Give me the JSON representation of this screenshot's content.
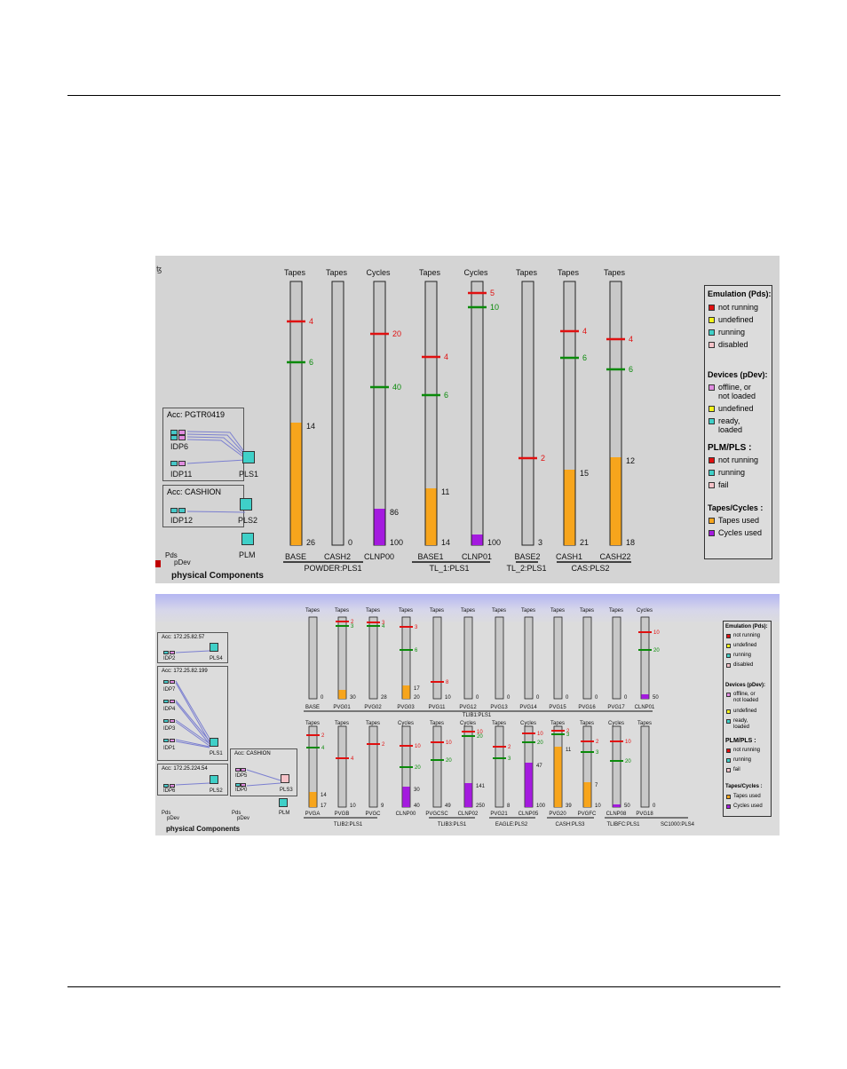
{
  "panel1": {
    "corner_glyph": "ꜩ",
    "physical_components_label": "physical Components",
    "pds_label": "Pds",
    "pdev_label": "pDev",
    "plm_label": "PLM",
    "acc_groups": [
      {
        "title": "Acc: PGTR0419",
        "devices": [
          "IDP6",
          "IDP11"
        ],
        "pls": "PLS1"
      },
      {
        "title": "Acc: CASHION",
        "devices": [
          "IDP12"
        ],
        "pls": "PLS2"
      }
    ],
    "columns": [
      {
        "header": "Tapes",
        "max": 26,
        "name": "BASE",
        "value": 14,
        "kind": "tapes",
        "markers": [
          {
            "v": 4,
            "c": "red"
          },
          {
            "v": 6,
            "c": "green"
          }
        ]
      },
      {
        "header": "Tapes",
        "max": 0,
        "name": "CASH2",
        "value": 0,
        "kind": "tapes",
        "markers": []
      },
      {
        "header": "Cycles",
        "max": 100,
        "name": "CLNP00",
        "value": 86,
        "kind": "cycles",
        "markers": [
          {
            "v": 20,
            "c": "red"
          },
          {
            "v": 40,
            "c": "green"
          }
        ]
      },
      {
        "header": "Tapes",
        "max": 14,
        "name": "BASE1",
        "value": 11,
        "kind": "tapes",
        "markers": [
          {
            "v": 4,
            "c": "red"
          },
          {
            "v": 6,
            "c": "green"
          }
        ]
      },
      {
        "header": "Cycles",
        "max": 100,
        "name": "CLNP01",
        "value": "",
        "kind": "cycles",
        "markers": [
          {
            "v": 5,
            "c": "red"
          },
          {
            "v": 10,
            "c": "green"
          }
        ]
      },
      {
        "header": "Tapes",
        "max": 3,
        "name": "BASE2",
        "value": "",
        "kind": "tapes",
        "markers": [
          {
            "v": 2,
            "c": "red"
          }
        ]
      },
      {
        "header": "Tapes",
        "max": 21,
        "name": "CASH1",
        "value": 15,
        "kind": "tapes",
        "markers": [
          {
            "v": 4,
            "c": "red"
          },
          {
            "v": 6,
            "c": "green"
          }
        ]
      },
      {
        "header": "Tapes",
        "max": 18,
        "name": "CASH22",
        "value": 12,
        "kind": "tapes",
        "markers": [
          {
            "v": 4,
            "c": "red"
          },
          {
            "v": 6,
            "c": "green"
          }
        ]
      }
    ],
    "pls_groups": [
      "POWDER:PLS1",
      "TL_1:PLS1",
      "TL_2:PLS1",
      "CAS:PLS2"
    ]
  },
  "panel2": {
    "physical_components_label": "physical Components",
    "pds_label": "Pds",
    "pdev_label": "pDev",
    "plm_label": "PLM",
    "acc_groups": [
      {
        "title": "Acc: 172.25.82.57",
        "devices": [
          "IDP2"
        ],
        "pls": "PLS4"
      },
      {
        "title": "Acc: 172.25.82.199",
        "devices": [
          "IDP7",
          "IDP4",
          "IDP3",
          "IDP1"
        ],
        "pls": "PLS1"
      },
      {
        "title": "Acc: 172.25.224.54",
        "devices": [
          "IDP6"
        ],
        "pls": "PLS2"
      },
      {
        "title": "Acc: CASHION",
        "devices": [
          "IDP5",
          "IDP0"
        ],
        "pls": "PLS3"
      }
    ],
    "row1": [
      {
        "header": "Tapes",
        "name": "BASE",
        "bottom": "0",
        "fill": "",
        "kind": "tapes",
        "markers": []
      },
      {
        "header": "Tapes",
        "name": "PVG01",
        "bottom": "30",
        "fill": "",
        "kind": "tapes",
        "markers": [
          {
            "t": "2",
            "c": "red"
          },
          {
            "t": "3",
            "c": "green"
          }
        ]
      },
      {
        "header": "Tapes",
        "name": "PVG02",
        "bottom": "28",
        "fill": "",
        "kind": "tapes",
        "markers": [
          {
            "t": "3",
            "c": "red"
          },
          {
            "t": "4",
            "c": "green"
          }
        ]
      },
      {
        "header": "Tapes",
        "name": "PVG03",
        "bottom": "20",
        "fill": "17",
        "kind": "tapes",
        "markers": [
          {
            "t": "3",
            "c": "red"
          },
          {
            "t": "6",
            "c": "green"
          }
        ]
      },
      {
        "header": "Tapes",
        "name": "PVG11",
        "bottom": "10",
        "fill": "",
        "kind": "tapes",
        "markers": [
          {
            "t": "8",
            "c": "red"
          }
        ]
      },
      {
        "header": "Tapes",
        "name": "PVG12",
        "bottom": "0",
        "fill": "",
        "kind": "tapes",
        "markers": []
      },
      {
        "header": "Tapes",
        "name": "PVG13",
        "bottom": "0",
        "fill": "",
        "kind": "tapes",
        "markers": []
      },
      {
        "header": "Tapes",
        "name": "PVG14",
        "bottom": "0",
        "fill": "",
        "kind": "tapes",
        "markers": []
      },
      {
        "header": "Tapes",
        "name": "PVG15",
        "bottom": "0",
        "fill": "",
        "kind": "tapes",
        "markers": []
      },
      {
        "header": "Tapes",
        "name": "PVG16",
        "bottom": "0",
        "fill": "",
        "kind": "tapes",
        "markers": []
      },
      {
        "header": "Tapes",
        "name": "PVG17",
        "bottom": "0",
        "fill": "",
        "kind": "tapes",
        "markers": []
      },
      {
        "header": "Cycles",
        "name": "CLNP01",
        "bottom": "50",
        "fill": "",
        "kind": "cycles",
        "markers": [
          {
            "t": "10",
            "c": "red"
          },
          {
            "t": "20",
            "c": "green"
          }
        ]
      }
    ],
    "row1_group": "TLIB1:PLS1",
    "row2": [
      {
        "header": "Tapes",
        "name": "PVGA",
        "bottom": "17",
        "fill": "14",
        "kind": "tapes",
        "markers": [
          {
            "t": "2",
            "c": "red"
          },
          {
            "t": "4",
            "c": "green"
          }
        ]
      },
      {
        "header": "Tapes",
        "name": "PVGB",
        "bottom": "10",
        "fill": "",
        "kind": "tapes",
        "markers": [
          {
            "t": "4",
            "c": "red"
          }
        ]
      },
      {
        "header": "Tapes",
        "name": "PVGC",
        "bottom": "9",
        "fill": "",
        "kind": "tapes",
        "markers": [
          {
            "t": "2",
            "c": "red"
          }
        ]
      },
      {
        "header": "Cycles",
        "name": "CLNP00",
        "bottom": "40",
        "fill": "30",
        "kind": "cycles",
        "markers": [
          {
            "t": "10",
            "c": "red"
          },
          {
            "t": "20",
            "c": "green"
          }
        ]
      },
      {
        "header": "Tapes",
        "name": "PVGCSC",
        "bottom": "49",
        "fill": "",
        "kind": "tapes",
        "markers": [
          {
            "t": "10",
            "c": "red"
          },
          {
            "t": "20",
            "c": "green"
          }
        ]
      },
      {
        "header": "Cycles",
        "name": "CLNP02",
        "bottom": "250",
        "fill": "141",
        "kind": "cycles",
        "markers": [
          {
            "t": "10",
            "c": "red"
          },
          {
            "t": "20",
            "c": "green"
          }
        ]
      },
      {
        "header": "Tapes",
        "name": "PVG21",
        "bottom": "8",
        "fill": "",
        "kind": "tapes",
        "markers": [
          {
            "t": "2",
            "c": "red"
          },
          {
            "t": "3",
            "c": "green"
          }
        ]
      },
      {
        "header": "Cycles",
        "name": "CLNP05",
        "bottom": "100",
        "fill": "47",
        "kind": "cycles",
        "markers": [
          {
            "t": "10",
            "c": "red"
          },
          {
            "t": "20",
            "c": "green"
          }
        ]
      },
      {
        "header": "Tapes",
        "name": "PVG20",
        "bottom": "39",
        "fill": "11",
        "kind": "tapes",
        "markers": [
          {
            "t": "2",
            "c": "red"
          },
          {
            "t": "3",
            "c": "green"
          }
        ]
      },
      {
        "header": "Tapes",
        "name": "PVGFC",
        "bottom": "10",
        "fill": "7",
        "kind": "tapes",
        "markers": [
          {
            "t": "2",
            "c": "red"
          },
          {
            "t": "3",
            "c": "green"
          }
        ]
      },
      {
        "header": "Cycles",
        "name": "CLNP08",
        "bottom": "50",
        "fill": "",
        "kind": "cycles",
        "markers": [
          {
            "t": "10",
            "c": "red"
          },
          {
            "t": "20",
            "c": "green"
          }
        ]
      },
      {
        "header": "Tapes",
        "name": "PVG18",
        "bottom": "0",
        "fill": "",
        "kind": "tapes",
        "markers": []
      }
    ],
    "row2_groups": [
      "TLIB2:PLS1",
      "TLIB3:PLS1",
      "EAGLE:PLS2",
      "CASH:PLS3",
      "TLIBFC:PLS1",
      "SC1000:PLS4"
    ]
  },
  "legend": {
    "emulation_title": "Emulation (Pds):",
    "emulation_items": [
      "not running",
      "undefined",
      "running",
      "disabled"
    ],
    "devices_title": "Devices (pDev):",
    "devices_items": [
      "offline, or\nnot loaded",
      "undefined",
      "ready,\nloaded"
    ],
    "plm_title": "PLM/PLS :",
    "plm_items": [
      "not running",
      "running",
      "fail"
    ],
    "tapes_title": "Tapes/Cycles :",
    "tapes_items": [
      "Tapes used",
      "Cycles used"
    ]
  },
  "colors": {
    "tapes_fill": "#f7a51c",
    "cycles_fill": "#a41adf",
    "bar_bg": "#c8c8c8",
    "red": "#e01010",
    "green": "#0a8a0a",
    "cyan": "#3fd0c8",
    "yellow": "#f4f41a",
    "pink": "#f6c2c8",
    "magenta": "#e08ce0"
  }
}
